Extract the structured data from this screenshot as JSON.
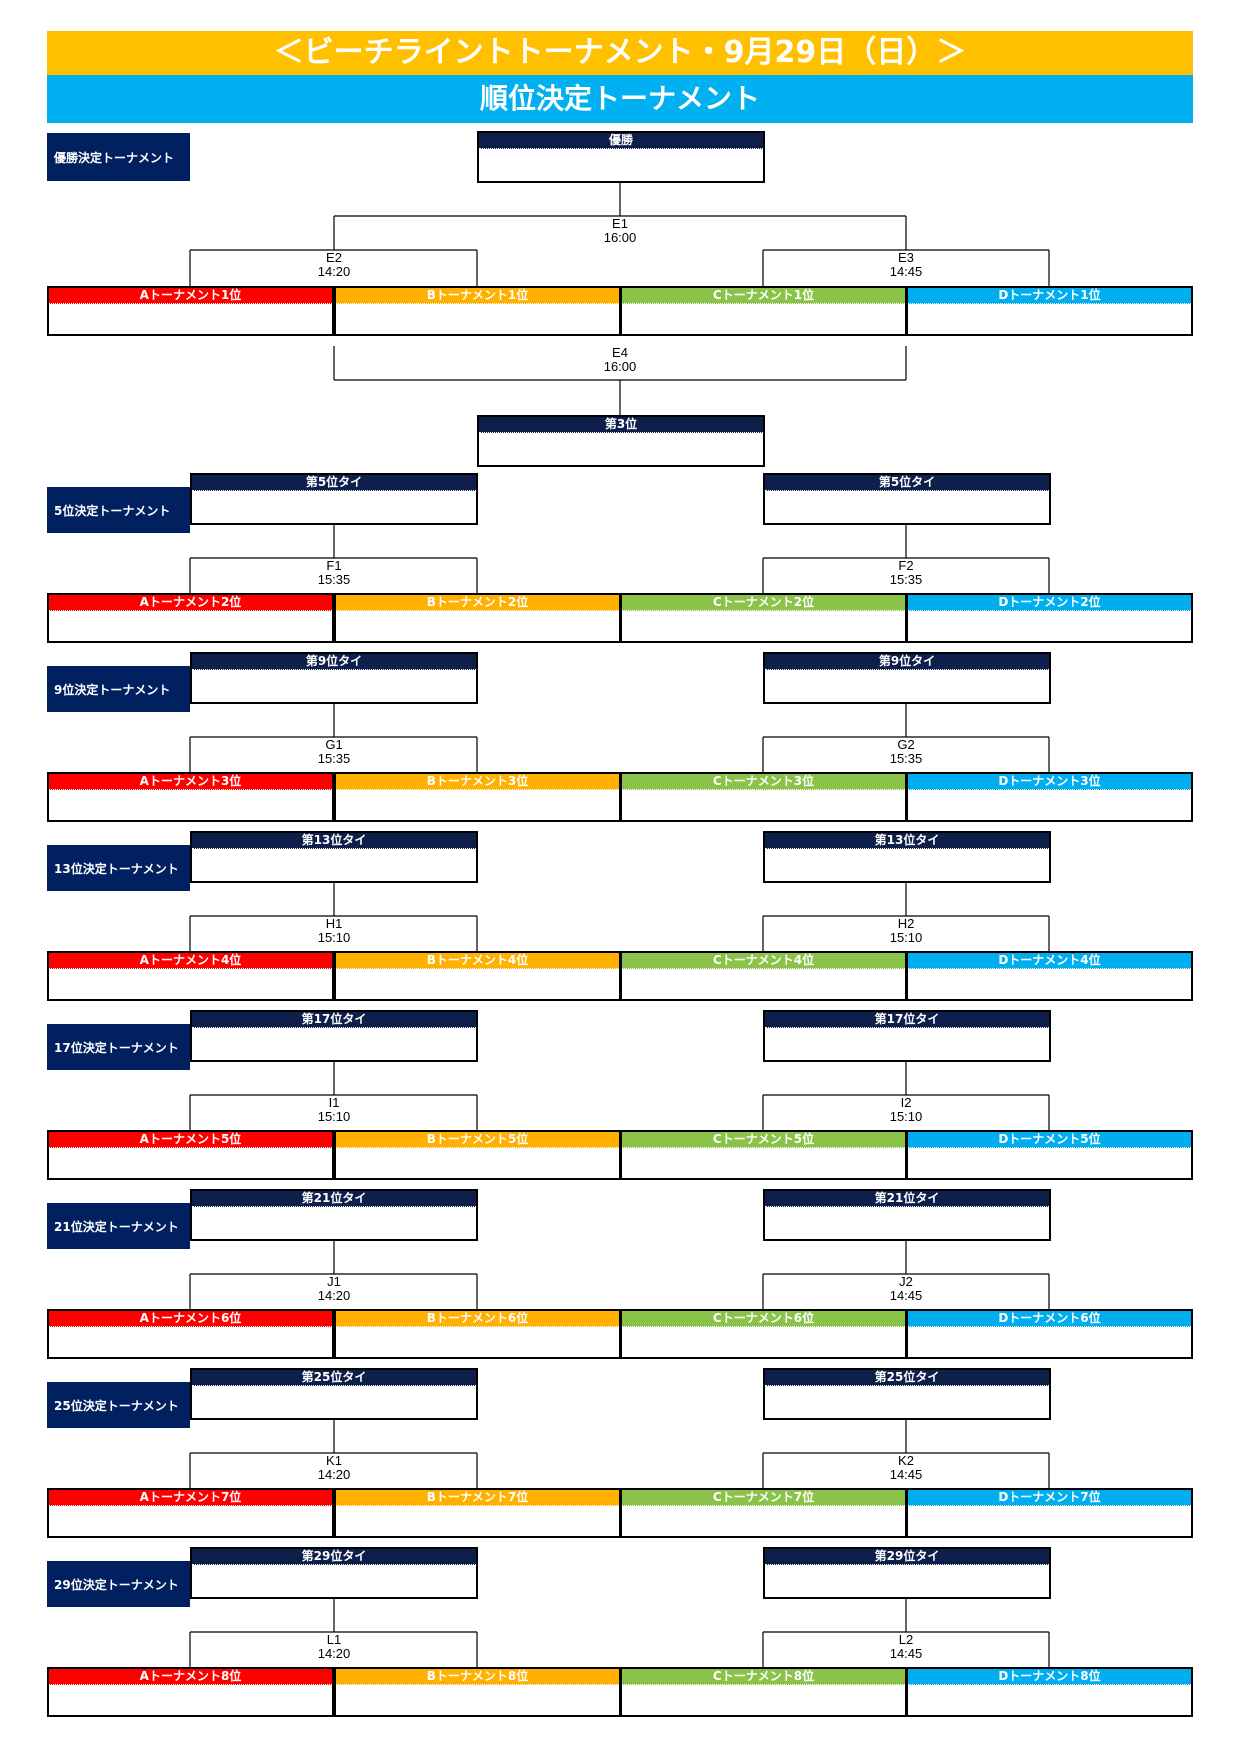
{
  "title": "＜ビーチライントトーナメント・9月29日（日）＞",
  "subtitle": "順位決定トーナメント",
  "colors": {
    "title_bg": "#FFC000",
    "subtitle_bg": "#00B0F0",
    "navy": "#0E1F4C",
    "A": "#FF0000",
    "B": "#FFB000",
    "C": "#8BC34A",
    "D": "#00AEEF"
  },
  "final": {
    "label": "優勝決定トーナメント",
    "champion": "優勝",
    "third": "第3位",
    "matches": {
      "E1": {
        "code": "E1",
        "time": "16:00"
      },
      "E2": {
        "code": "E2",
        "time": "14:20"
      },
      "E3": {
        "code": "E3",
        "time": "14:45"
      },
      "E4": {
        "code": "E4",
        "time": "16:00"
      }
    },
    "seeds": [
      "Aトーナメント1位",
      "Bトーナメント1位",
      "Cトーナメント1位",
      "Dトーナメント1位"
    ]
  },
  "groups": [
    {
      "label": "5位決定トーナメント",
      "result_left": "第5位タイ",
      "result_right": "第5位タイ",
      "left_match": {
        "code": "F1",
        "time": "15:35"
      },
      "right_match": {
        "code": "F2",
        "time": "15:35"
      },
      "seeds": [
        "Aトーナメント2位",
        "Bトーナメント2位",
        "Cトーナメント2位",
        "Dトーナメント2位"
      ]
    },
    {
      "label": "9位決定トーナメント",
      "result_left": "第9位タイ",
      "result_right": "第9位タイ",
      "left_match": {
        "code": "G1",
        "time": "15:35"
      },
      "right_match": {
        "code": "G2",
        "time": "15:35"
      },
      "seeds": [
        "Aトーナメント3位",
        "Bトーナメント3位",
        "Cトーナメント3位",
        "Dトーナメント3位"
      ]
    },
    {
      "label": "13位決定トーナメント",
      "result_left": "第13位タイ",
      "result_right": "第13位タイ",
      "left_match": {
        "code": "H1",
        "time": "15:10"
      },
      "right_match": {
        "code": "H2",
        "time": "15:10"
      },
      "seeds": [
        "Aトーナメント4位",
        "Bトーナメント4位",
        "Cトーナメント4位",
        "Dトーナメント4位"
      ]
    },
    {
      "label": "17位決定トーナメント",
      "result_left": "第17位タイ",
      "result_right": "第17位タイ",
      "left_match": {
        "code": "I1",
        "time": "15:10"
      },
      "right_match": {
        "code": "I2",
        "time": "15:10"
      },
      "seeds": [
        "Aトーナメント5位",
        "Bトーナメント5位",
        "Cトーナメント5位",
        "Dトーナメント5位"
      ]
    },
    {
      "label": "21位決定トーナメント",
      "result_left": "第21位タイ",
      "result_right": "第21位タイ",
      "left_match": {
        "code": "J1",
        "time": "14:20"
      },
      "right_match": {
        "code": "J2",
        "time": "14:45"
      },
      "seeds": [
        "Aトーナメント6位",
        "Bトーナメント6位",
        "Cトーナメント6位",
        "Dトーナメント6位"
      ]
    },
    {
      "label": "25位決定トーナメント",
      "result_left": "第25位タイ",
      "result_right": "第25位タイ",
      "left_match": {
        "code": "K1",
        "time": "14:20"
      },
      "right_match": {
        "code": "K2",
        "time": "14:45"
      },
      "seeds": [
        "Aトーナメント7位",
        "Bトーナメント7位",
        "Cトーナメント7位",
        "Dトーナメント7位"
      ]
    },
    {
      "label": "29位決定トーナメント",
      "result_left": "第29位タイ",
      "result_right": "第29位タイ",
      "left_match": {
        "code": "L1",
        "time": "14:20"
      },
      "right_match": {
        "code": "L2",
        "time": "14:45"
      },
      "seeds": [
        "Aトーナメント8位",
        "Bトーナメント8位",
        "Cトーナメント8位",
        "Dトーナメント8位"
      ]
    }
  ]
}
